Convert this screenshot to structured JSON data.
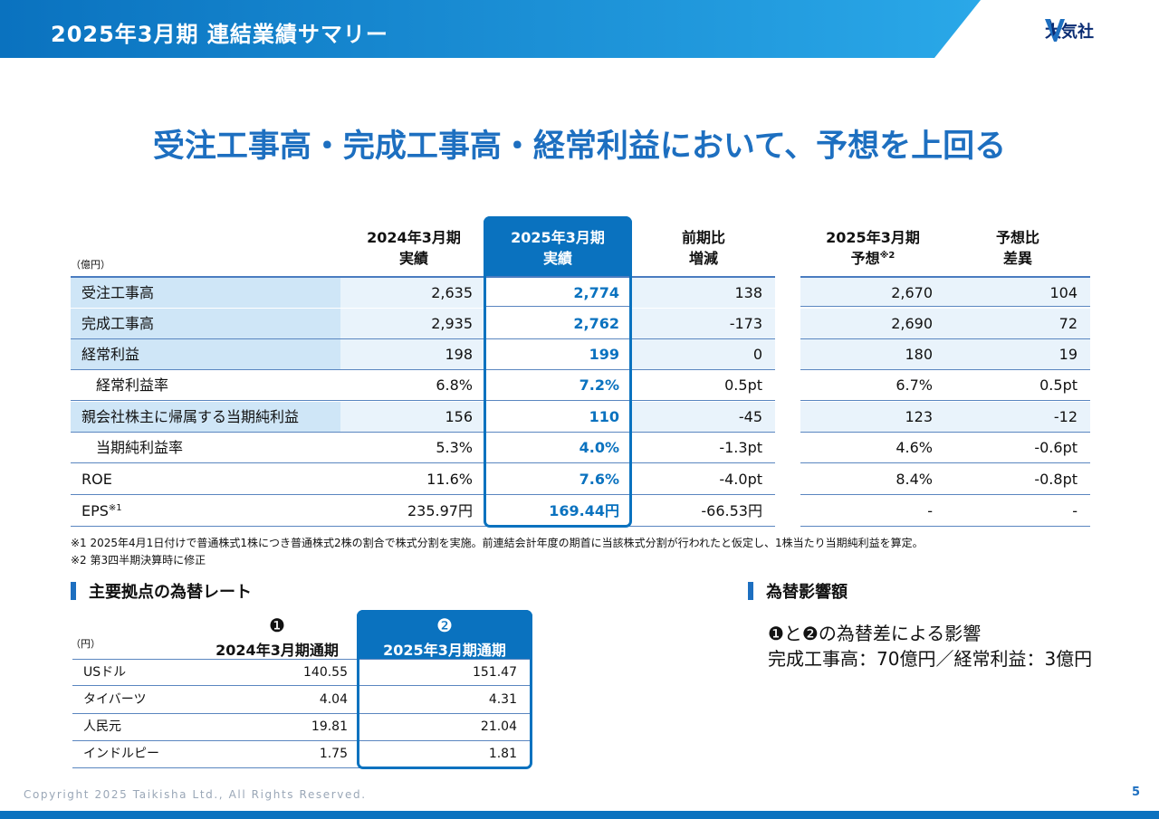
{
  "header": {
    "title": "2025年3月期 連結業績サマリー",
    "logo_text": "大気社",
    "colors": {
      "band_dark": "#0a72bf",
      "band_light": "#2aa8e8"
    }
  },
  "headline": "受注工事高・完成工事高・経常利益において、予想を上回る",
  "results_table": {
    "unit": "（億円）",
    "columns": {
      "prev": [
        "2024年3月期",
        "実績"
      ],
      "curr": [
        "2025年3月期",
        "実績"
      ],
      "diff": [
        "前期比",
        "増減"
      ],
      "forecast": [
        "2025年3月期",
        "予想"
      ],
      "forecast_note": "※2",
      "vs_forecast": [
        "予想比",
        "差異"
      ]
    },
    "rows": [
      {
        "label": "受注工事高",
        "prev": "2,635",
        "curr": "2,774",
        "diff": "138",
        "forecast": "2,670",
        "vs_forecast": "104"
      },
      {
        "label": "完成工事高",
        "prev": "2,935",
        "curr": "2,762",
        "diff": "-173",
        "forecast": "2,690",
        "vs_forecast": "72"
      },
      {
        "label": "経常利益",
        "prev": "198",
        "curr": "199",
        "diff": "0",
        "forecast": "180",
        "vs_forecast": "19"
      },
      {
        "label": "経常利益率",
        "prev": "6.8%",
        "curr": "7.2%",
        "diff": "0.5pt",
        "forecast": "6.7%",
        "vs_forecast": "0.5pt"
      },
      {
        "label": "親会社株主に帰属する当期純利益",
        "prev": "156",
        "curr": "110",
        "diff": "-45",
        "forecast": "123",
        "vs_forecast": "-12"
      },
      {
        "label": "当期純利益率",
        "prev": "5.3%",
        "curr": "4.0%",
        "diff": "-1.3pt",
        "forecast": "4.6%",
        "vs_forecast": "-0.6pt"
      },
      {
        "label": "ROE",
        "prev": "11.6%",
        "curr": "7.6%",
        "diff": "-4.0pt",
        "forecast": "8.4%",
        "vs_forecast": "-0.8pt"
      },
      {
        "label": "EPS",
        "label_note": "※1",
        "prev": "235.97円",
        "curr": "169.44円",
        "diff": "-66.53円",
        "forecast": "-",
        "vs_forecast": "-"
      }
    ],
    "notes": [
      "※1 2025年4月1日付けで普通株式1株につき普通株式2株の割合で株式分割を実施。前連結会計年度の期首に当該株式分割が行われたと仮定し、1株当たり当期純利益を算定。",
      "※2 第3四半期決算時に修正"
    ]
  },
  "fx_section": {
    "title": "主要拠点の為替レート",
    "unit": "（円）",
    "col1_marker": "❶",
    "col1": "2024年3月期通期",
    "col2_marker": "❷",
    "col2": "2025年3月期通期",
    "rows": [
      {
        "label": "USドル",
        "y2024": "140.55",
        "y2025": "151.47"
      },
      {
        "label": "タイバーツ",
        "y2024": "4.04",
        "y2025": "4.31"
      },
      {
        "label": "人民元",
        "y2024": "19.81",
        "y2025": "21.04"
      },
      {
        "label": "インドルピー",
        "y2024": "1.75",
        "y2025": "1.81"
      }
    ]
  },
  "impact_section": {
    "title": "為替影響額",
    "line1": "❶と❷の為替差による影響",
    "line2": "完成工事高：70億円／経常利益：3億円"
  },
  "footer": {
    "copyright": "Copyright  2025 Taikisha Ltd., All Rights Reserved.",
    "page": "5"
  }
}
